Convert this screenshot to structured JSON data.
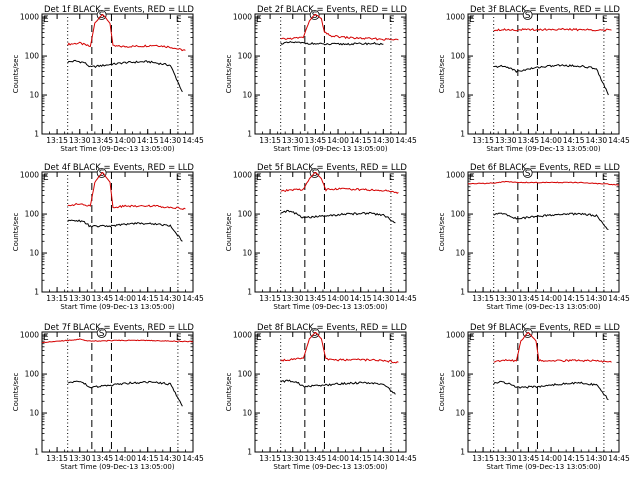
{
  "colors": {
    "events": "#000000",
    "lld": "#d40000",
    "background": "#ffffff",
    "axes": "#000000"
  },
  "chart_data": [
    {
      "type": "line",
      "title": "Det 1f BLACK = Events, RED = LLD",
      "xlabel": "Start Time (09-Dec-13 13:05:00)",
      "ylabel": "Counts/sec",
      "x_ticks": [
        "13:15",
        "13:30",
        "13:45",
        "14:00",
        "14:15",
        "14:30",
        "14:45"
      ],
      "y_ticks": [
        "1",
        "10",
        "100",
        "1000"
      ],
      "y_scale": "log",
      "ylim": [
        1,
        1200
      ],
      "xlim": [
        "13:05",
        "14:45"
      ],
      "markers": {
        "dotted": [
          "13:22",
          "14:35"
        ],
        "dashed": [
          "13:38",
          "13:51"
        ],
        "labels": {
          "left": "E",
          "center": "S",
          "right": "E"
        }
      },
      "series": [
        {
          "name": "LLD",
          "color": "#d40000",
          "x": [
            "13:22",
            "13:30",
            "13:37",
            "13:40",
            "13:45",
            "13:50",
            "13:52",
            "14:00",
            "14:10",
            "14:20",
            "14:30",
            "14:37",
            "14:40"
          ],
          "y": [
            200,
            215,
            175,
            700,
            1200,
            700,
            180,
            175,
            180,
            190,
            170,
            145,
            140
          ]
        },
        {
          "name": "Events",
          "color": "#000000",
          "x": [
            "13:22",
            "13:27",
            "13:33",
            "13:37",
            "13:52",
            "14:00",
            "14:15",
            "14:30",
            "14:38"
          ],
          "y": [
            70,
            75,
            68,
            52,
            62,
            68,
            72,
            58,
            12
          ]
        }
      ]
    },
    {
      "type": "line",
      "title": "Det 2f BLACK = Events, RED = LLD",
      "xlabel": "Start Time (09-Dec-13 13:05:00)",
      "ylabel": "Counts/sec",
      "x_ticks": [
        "13:15",
        "13:30",
        "13:45",
        "14:00",
        "14:15",
        "14:30",
        "14:45"
      ],
      "y_ticks": [
        "1",
        "10",
        "100",
        "1000"
      ],
      "y_scale": "log",
      "ylim": [
        1,
        1200
      ],
      "xlim": [
        "13:05",
        "14:45"
      ],
      "markers": {
        "dotted": [
          "13:22",
          "14:35"
        ],
        "dashed": [
          "13:38",
          "13:51"
        ],
        "labels": {
          "left": "E",
          "center": "S",
          "right": "E"
        }
      },
      "series": [
        {
          "name": "LLD",
          "color": "#d40000",
          "x": [
            "13:22",
            "13:30",
            "13:37",
            "13:41",
            "13:45",
            "13:49",
            "13:51",
            "13:55",
            "14:05",
            "14:15",
            "14:30",
            "14:40"
          ],
          "y": [
            270,
            285,
            300,
            800,
            1200,
            900,
            400,
            330,
            300,
            285,
            270,
            260
          ]
        },
        {
          "name": "Events",
          "color": "#000000",
          "x": [
            "13:22",
            "13:30",
            "13:37",
            "13:52",
            "14:10",
            "14:25",
            "14:30"
          ],
          "y": [
            210,
            225,
            215,
            200,
            205,
            210,
            200
          ]
        }
      ]
    },
    {
      "type": "line",
      "title": "Det 3f BLACK = Events, RED = LLD",
      "xlabel": "Start Time (09-Dec-13 13:05:00)",
      "ylabel": "Counts/sec",
      "x_ticks": [
        "13:15",
        "13:30",
        "13:45",
        "14:00",
        "14:15",
        "14:30",
        "14:45"
      ],
      "y_ticks": [
        "1",
        "10",
        "100",
        "1000"
      ],
      "y_scale": "log",
      "ylim": [
        1,
        1200
      ],
      "xlim": [
        "13:05",
        "14:45"
      ],
      "markers": {
        "dotted": [
          "13:22",
          "14:35"
        ],
        "dashed": [
          "13:38",
          "13:51"
        ],
        "labels": {
          "left": "E",
          "center": "S",
          "right": "E"
        }
      },
      "series": [
        {
          "name": "LLD",
          "color": "#d40000",
          "x": [
            "13:22",
            "13:30",
            "13:37",
            "13:52",
            "14:05",
            "14:20",
            "14:40"
          ],
          "y": [
            470,
            480,
            470,
            480,
            485,
            475,
            460
          ]
        },
        {
          "name": "Events",
          "color": "#000000",
          "x": [
            "13:22",
            "13:27",
            "13:33",
            "13:37",
            "13:52",
            "14:05",
            "14:20",
            "14:30",
            "14:38"
          ],
          "y": [
            52,
            55,
            50,
            40,
            52,
            58,
            55,
            48,
            10
          ]
        }
      ]
    },
    {
      "type": "line",
      "title": "Det 4f BLACK = Events, RED = LLD",
      "xlabel": "Start Time (09-Dec-13 13:05:00)",
      "ylabel": "Counts/sec",
      "x_ticks": [
        "13:15",
        "13:30",
        "13:45",
        "14:00",
        "14:15",
        "14:30",
        "14:45"
      ],
      "y_ticks": [
        "1",
        "10",
        "100",
        "1000"
      ],
      "y_scale": "log",
      "ylim": [
        1,
        1200
      ],
      "xlim": [
        "13:05",
        "14:45"
      ],
      "markers": {
        "dotted": [
          "13:22",
          "14:35"
        ],
        "dashed": [
          "13:38",
          "13:51"
        ],
        "labels": {
          "left": "E",
          "center": "S",
          "right": "E"
        }
      },
      "series": [
        {
          "name": "LLD",
          "color": "#d40000",
          "x": [
            "13:22",
            "13:30",
            "13:37",
            "13:40",
            "13:45",
            "13:50",
            "13:52",
            "14:00",
            "14:15",
            "14:30",
            "14:40"
          ],
          "y": [
            170,
            180,
            160,
            650,
            1200,
            650,
            150,
            160,
            165,
            150,
            135
          ]
        },
        {
          "name": "Events",
          "color": "#000000",
          "x": [
            "13:22",
            "13:27",
            "13:33",
            "13:37",
            "13:52",
            "14:05",
            "14:20",
            "14:30",
            "14:38"
          ],
          "y": [
            65,
            70,
            62,
            48,
            50,
            58,
            56,
            50,
            20
          ]
        }
      ]
    },
    {
      "type": "line",
      "title": "Det 5f BLACK = Events, RED = LLD",
      "xlabel": "Start Time (09-Dec-13 13:05:00)",
      "ylabel": "Counts/sec",
      "x_ticks": [
        "13:15",
        "13:30",
        "13:45",
        "14:00",
        "14:15",
        "14:30",
        "14:45"
      ],
      "y_ticks": [
        "1",
        "10",
        "100",
        "1000"
      ],
      "y_scale": "log",
      "ylim": [
        1,
        1200
      ],
      "xlim": [
        "13:05",
        "14:45"
      ],
      "markers": {
        "dotted": [
          "13:22",
          "14:35"
        ],
        "dashed": [
          "13:38",
          "13:51"
        ],
        "labels": {
          "left": "E",
          "center": "S",
          "right": "E"
        }
      },
      "series": [
        {
          "name": "LLD",
          "color": "#d40000",
          "x": [
            "13:22",
            "13:30",
            "13:37",
            "13:41",
            "13:45",
            "13:49",
            "13:52",
            "14:00",
            "14:10",
            "14:20",
            "14:30",
            "14:40"
          ],
          "y": [
            380,
            420,
            430,
            800,
            1200,
            800,
            420,
            450,
            430,
            420,
            400,
            360
          ]
        },
        {
          "name": "Events",
          "color": "#000000",
          "x": [
            "13:22",
            "13:27",
            "13:33",
            "13:37",
            "13:52",
            "14:05",
            "14:20",
            "14:30",
            "14:38"
          ],
          "y": [
            110,
            120,
            100,
            80,
            90,
            100,
            105,
            95,
            60
          ]
        }
      ]
    },
    {
      "type": "line",
      "title": "Det 6f BLACK = Events, RED = LLD",
      "xlabel": "Start Time (09-Dec-13 13:05:00)",
      "ylabel": "Counts/sec",
      "x_ticks": [
        "13:15",
        "13:30",
        "13:45",
        "14:00",
        "14:15",
        "14:30",
        "14:45"
      ],
      "y_ticks": [
        "1",
        "10",
        "100",
        "1000"
      ],
      "y_scale": "log",
      "ylim": [
        1,
        1200
      ],
      "xlim": [
        "13:05",
        "14:45"
      ],
      "markers": {
        "dotted": [
          "13:22",
          "14:35"
        ],
        "dashed": [
          "13:38",
          "13:51"
        ],
        "labels": {
          "left": "E",
          "center": "S",
          "right": "E"
        }
      },
      "series": [
        {
          "name": "LLD",
          "color": "#d40000",
          "x": [
            "13:05",
            "13:20",
            "13:30",
            "13:37",
            "13:52",
            "14:05",
            "14:20",
            "14:45"
          ],
          "y": [
            600,
            620,
            680,
            650,
            640,
            650,
            640,
            560
          ]
        },
        {
          "name": "Events",
          "color": "#000000",
          "x": [
            "13:22",
            "13:27",
            "13:33",
            "13:37",
            "13:52",
            "14:05",
            "14:20",
            "14:30",
            "14:38"
          ],
          "y": [
            95,
            105,
            90,
            75,
            88,
            98,
            102,
            90,
            40
          ]
        }
      ]
    },
    {
      "type": "line",
      "title": "Det 7f BLACK = Events, RED = LLD",
      "xlabel": "Start Time (09-Dec-13 13:05:00)",
      "ylabel": "Counts/sec",
      "x_ticks": [
        "13:15",
        "13:30",
        "13:45",
        "14:00",
        "14:15",
        "14:30",
        "14:45"
      ],
      "y_ticks": [
        "1",
        "10",
        "100",
        "1000"
      ],
      "y_scale": "log",
      "ylim": [
        1,
        1200
      ],
      "xlim": [
        "13:05",
        "14:45"
      ],
      "markers": {
        "dotted": [
          "13:22",
          "14:35"
        ],
        "dashed": [
          "13:38",
          "13:51"
        ],
        "labels": {
          "left": "E",
          "center": "S",
          "right": "E"
        }
      },
      "series": [
        {
          "name": "LLD",
          "color": "#d40000",
          "x": [
            "13:05",
            "13:20",
            "13:30",
            "13:37",
            "13:52",
            "14:05",
            "14:20",
            "14:45"
          ],
          "y": [
            650,
            720,
            780,
            700,
            720,
            740,
            720,
            680
          ]
        },
        {
          "name": "Events",
          "color": "#000000",
          "x": [
            "13:22",
            "13:27",
            "13:33",
            "13:37",
            "13:52",
            "14:05",
            "14:20",
            "14:30",
            "14:38"
          ],
          "y": [
            60,
            65,
            58,
            45,
            52,
            60,
            62,
            55,
            15
          ]
        }
      ]
    },
    {
      "type": "line",
      "title": "Det 8f BLACK = Events, RED = LLD",
      "xlabel": "Start Time (09-Dec-13 13:05:00)",
      "ylabel": "Counts/sec",
      "x_ticks": [
        "13:15",
        "13:30",
        "13:45",
        "14:00",
        "14:15",
        "14:30",
        "14:45"
      ],
      "y_ticks": [
        "1",
        "10",
        "100",
        "1000"
      ],
      "y_scale": "log",
      "ylim": [
        1,
        1200
      ],
      "xlim": [
        "13:05",
        "14:45"
      ],
      "markers": {
        "dotted": [
          "13:22",
          "14:35"
        ],
        "dashed": [
          "13:38",
          "13:51"
        ],
        "labels": {
          "left": "E",
          "center": "S",
          "right": "E"
        }
      },
      "series": [
        {
          "name": "LLD",
          "color": "#d40000",
          "x": [
            "13:22",
            "13:30",
            "13:37",
            "13:41",
            "13:45",
            "13:49",
            "13:52",
            "14:00",
            "14:15",
            "14:30",
            "14:40"
          ],
          "y": [
            220,
            240,
            250,
            800,
            1200,
            800,
            240,
            230,
            235,
            220,
            200
          ]
        },
        {
          "name": "Events",
          "color": "#000000",
          "x": [
            "13:22",
            "13:27",
            "13:33",
            "13:37",
            "13:52",
            "14:05",
            "14:20",
            "14:30",
            "14:38"
          ],
          "y": [
            62,
            68,
            60,
            48,
            52,
            58,
            60,
            55,
            30
          ]
        }
      ]
    },
    {
      "type": "line",
      "title": "Det 9f BLACK = Events, RED = LLD",
      "xlabel": "Start Time (09-Dec-13 13:05:00)",
      "ylabel": "Counts/sec",
      "x_ticks": [
        "13:15",
        "13:30",
        "13:45",
        "14:00",
        "14:15",
        "14:30",
        "14:45"
      ],
      "y_ticks": [
        "1",
        "10",
        "100",
        "1000"
      ],
      "y_scale": "log",
      "ylim": [
        1,
        1200
      ],
      "xlim": [
        "13:05",
        "14:45"
      ],
      "markers": {
        "dotted": [
          "13:22",
          "14:35"
        ],
        "dashed": [
          "13:38",
          "13:51"
        ],
        "labels": {
          "left": "E",
          "center": "S",
          "right": "E"
        }
      },
      "series": [
        {
          "name": "LLD",
          "color": "#d40000",
          "x": [
            "13:22",
            "13:30",
            "13:37",
            "13:40",
            "13:45",
            "13:50",
            "13:52",
            "14:00",
            "14:15",
            "14:30",
            "14:40"
          ],
          "y": [
            210,
            230,
            220,
            700,
            1200,
            700,
            220,
            215,
            225,
            215,
            200
          ]
        },
        {
          "name": "Events",
          "color": "#000000",
          "x": [
            "13:22",
            "13:27",
            "13:33",
            "13:37",
            "13:52",
            "14:05",
            "14:20",
            "14:30",
            "14:38"
          ],
          "y": [
            58,
            65,
            55,
            45,
            48,
            55,
            60,
            52,
            22
          ]
        }
      ]
    }
  ]
}
